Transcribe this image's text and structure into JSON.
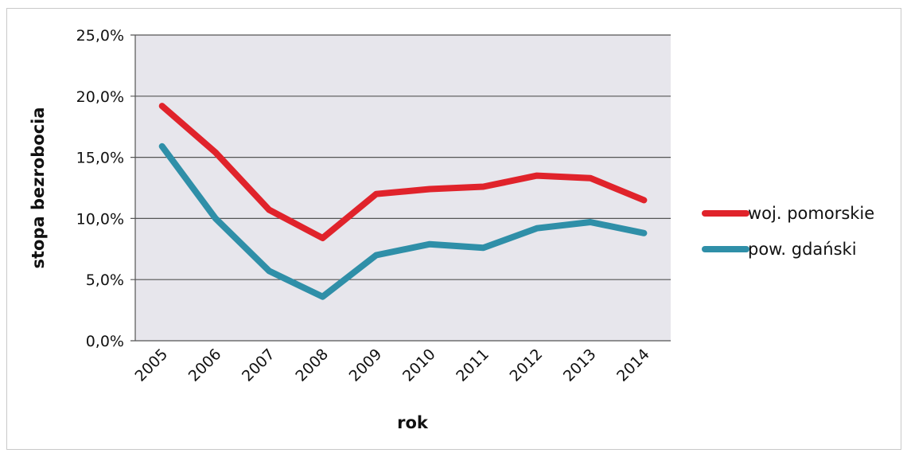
{
  "chart_data": {
    "type": "line",
    "categories": [
      "2005",
      "2006",
      "2007",
      "2008",
      "2009",
      "2010",
      "2011",
      "2012",
      "2013",
      "2014"
    ],
    "series": [
      {
        "name": "woj. pomorskie",
        "color": "#e0232b",
        "values": [
          19.2,
          15.4,
          10.7,
          8.4,
          12.0,
          12.4,
          12.6,
          13.5,
          13.3,
          11.5
        ]
      },
      {
        "name": "pow. gdański",
        "color": "#2f8fa8",
        "values": [
          15.9,
          10.0,
          5.7,
          3.6,
          7.0,
          7.9,
          7.6,
          9.2,
          9.7,
          8.8
        ]
      }
    ],
    "yticks": [
      "0,0%",
      "5,0%",
      "10,0%",
      "15,0%",
      "20,0%",
      "25,0%"
    ],
    "ylim": [
      0,
      25
    ],
    "xlabel": "rok",
    "ylabel": "stopa bezrobocia",
    "grid": true,
    "legend": "right",
    "plot_background": "#e7e6ec"
  }
}
